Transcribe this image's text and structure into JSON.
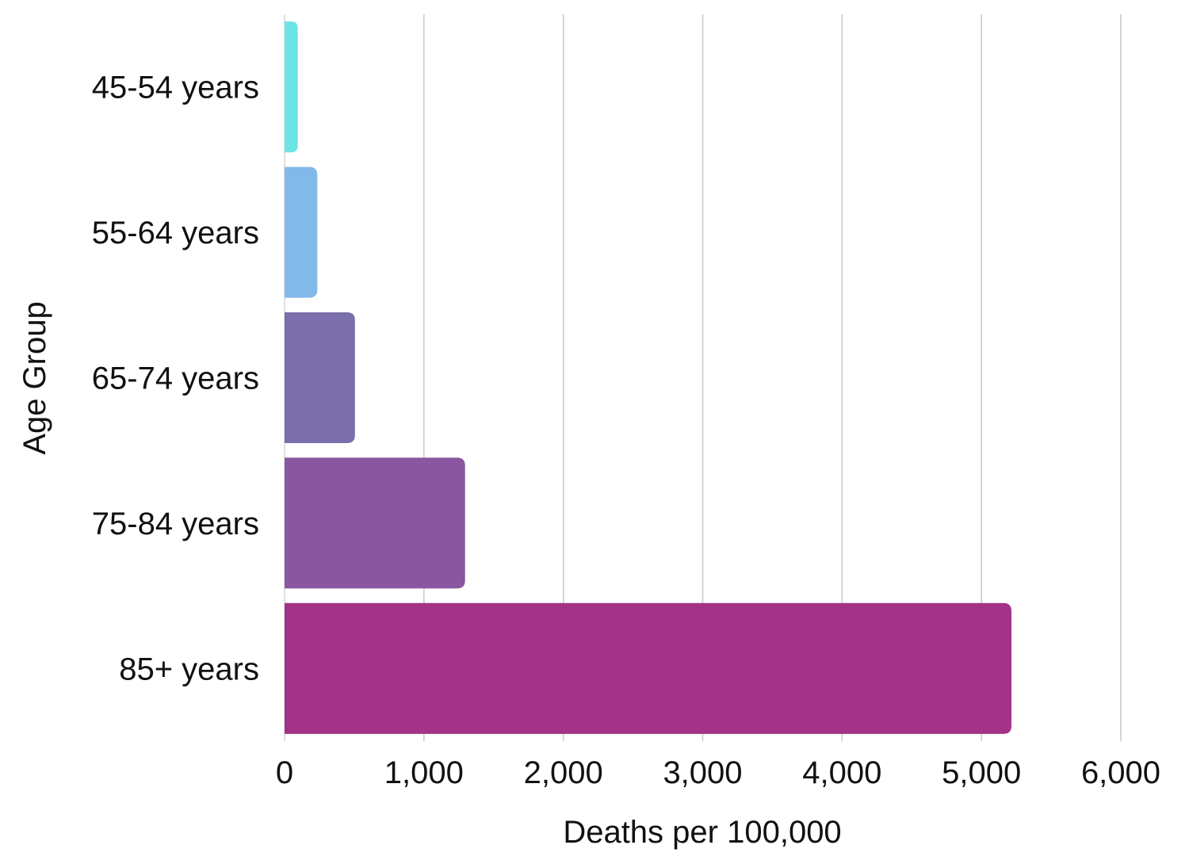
{
  "chart_data": {
    "type": "bar",
    "orientation": "horizontal",
    "categories": [
      "45-54 years",
      "55-64 years",
      "65-74 years",
      "75-84 years",
      "85+ years"
    ],
    "values": [
      95,
      235,
      505,
      1295,
      5215
    ],
    "colors": [
      "#6ee3e6",
      "#83b9e8",
      "#7a6fab",
      "#8a56a0",
      "#a33387"
    ],
    "xlabel": "Deaths per 100,000",
    "ylabel": "Age Group",
    "xlim": [
      0,
      6000
    ],
    "xticks": [
      0,
      1000,
      2000,
      3000,
      4000,
      5000,
      6000
    ],
    "xtick_labels": [
      "0",
      "1,000",
      "2,000",
      "3,000",
      "4,000",
      "5,000",
      "6,000"
    ],
    "grid": true,
    "grid_color": "#c8c8c8",
    "legend": "none"
  }
}
